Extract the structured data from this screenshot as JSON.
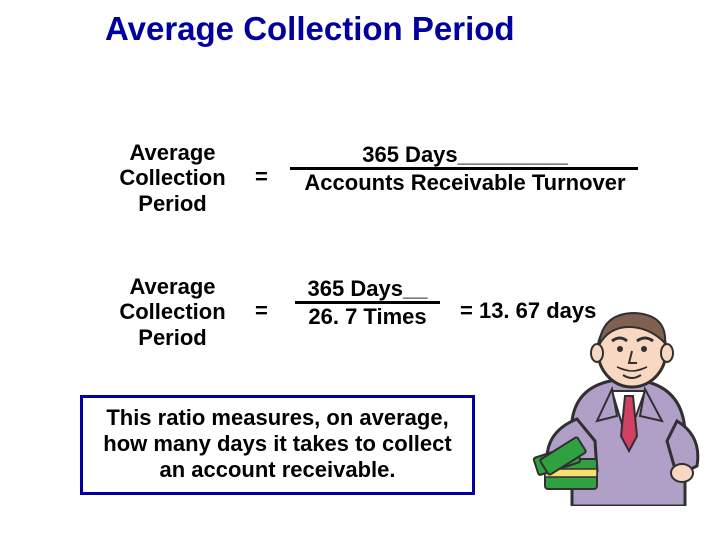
{
  "title": {
    "text": "Average Collection Period",
    "color": "#0000a0"
  },
  "formula1": {
    "lhs": "Average Collection Period",
    "eq": "=",
    "numerator": "365 Days_________",
    "denominator": "Accounts Receivable Turnover"
  },
  "formula2": {
    "lhs": "Average Collection Period",
    "eq": "=",
    "numerator": "365 Days__",
    "denominator": "26. 7 Times",
    "result": "=  13. 67 days"
  },
  "description": {
    "text": "This ratio measures, on average, how many days it takes to collect an account receivable.",
    "border_color": "#0000a0"
  },
  "clipart": {
    "suit_color": "#b0a0c8",
    "tie_color": "#d04060",
    "skin_color": "#f8d8c0",
    "hair_color": "#806050",
    "money_color": "#30a040",
    "money_band": "#f8e070",
    "outline": "#303030"
  }
}
